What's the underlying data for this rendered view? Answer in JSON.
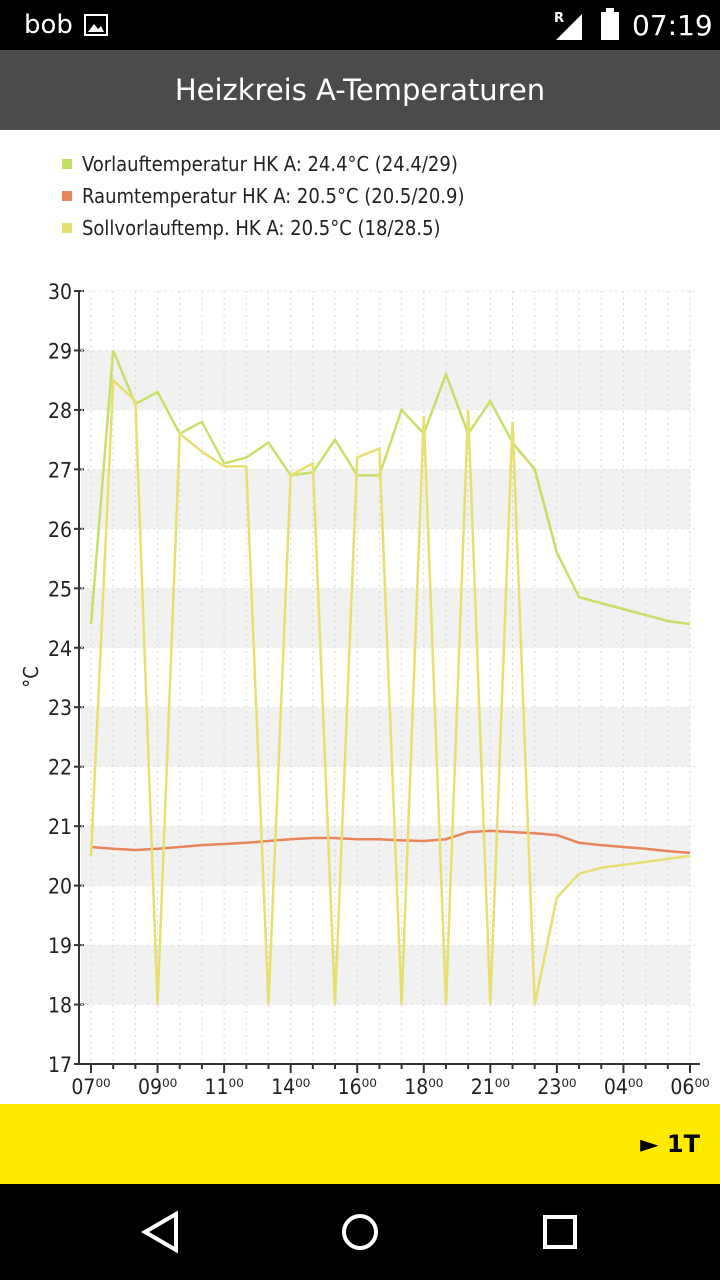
{
  "status_bar": {
    "left": "bob",
    "signal_label": "R",
    "time": "07:19"
  },
  "app_bar": {
    "title": "Heizkreis A-Temperaturen"
  },
  "chart_data": {
    "type": "line",
    "ylabel": "°C",
    "categories": [
      "07⁰⁰",
      null,
      null,
      "09⁰⁰",
      null,
      null,
      "11⁰⁰",
      null,
      null,
      "14⁰⁰",
      null,
      null,
      "16⁰⁰",
      null,
      null,
      "18⁰⁰",
      null,
      null,
      "21⁰⁰",
      null,
      null,
      "23⁰⁰",
      null,
      null,
      "04⁰⁰",
      null,
      null,
      "06⁰⁰"
    ],
    "series": [
      {
        "name": "Vorlauftemperatur HK A: 24.4°C (24.4/29)",
        "color": "#c6e06a",
        "values": [
          24.4,
          29.0,
          28.1,
          28.3,
          27.6,
          27.8,
          27.1,
          27.2,
          27.45,
          26.9,
          26.95,
          27.5,
          26.9,
          26.9,
          28.0,
          27.6,
          28.6,
          27.6,
          28.15,
          27.45,
          27.0,
          25.6,
          24.85,
          24.75,
          24.65,
          24.55,
          24.45,
          24.4
        ]
      },
      {
        "name": "Raumtemperatur HK A: 20.5°C (20.5/20.9)",
        "color": "#e8855c",
        "values": [
          20.65,
          20.62,
          20.6,
          20.62,
          20.65,
          20.68,
          20.7,
          20.72,
          20.75,
          20.78,
          20.8,
          20.8,
          20.78,
          20.78,
          20.76,
          20.75,
          20.78,
          20.9,
          20.92,
          20.9,
          20.88,
          20.85,
          20.72,
          20.68,
          20.65,
          20.62,
          20.58,
          20.55
        ]
      },
      {
        "name": "Sollvorlauftemp. HK A: 20.5°C (18/28.5)",
        "color": "#e6e070",
        "values": [
          20.5,
          28.5,
          28.15,
          18,
          27.6,
          27.3,
          27.05,
          27.05,
          18,
          26.9,
          27.1,
          18,
          27.2,
          27.35,
          18,
          27.9,
          18,
          28.0,
          18,
          27.8,
          18,
          19.8,
          20.2,
          20.3,
          20.35,
          20.4,
          20.45,
          20.5
        ]
      }
    ],
    "ylim": [
      17,
      30
    ],
    "yticks": [
      17,
      18,
      19,
      20,
      21,
      22,
      23,
      24,
      25,
      26,
      27,
      28,
      29,
      30
    ],
    "grid": true
  },
  "footer": {
    "button": "► 1T"
  }
}
